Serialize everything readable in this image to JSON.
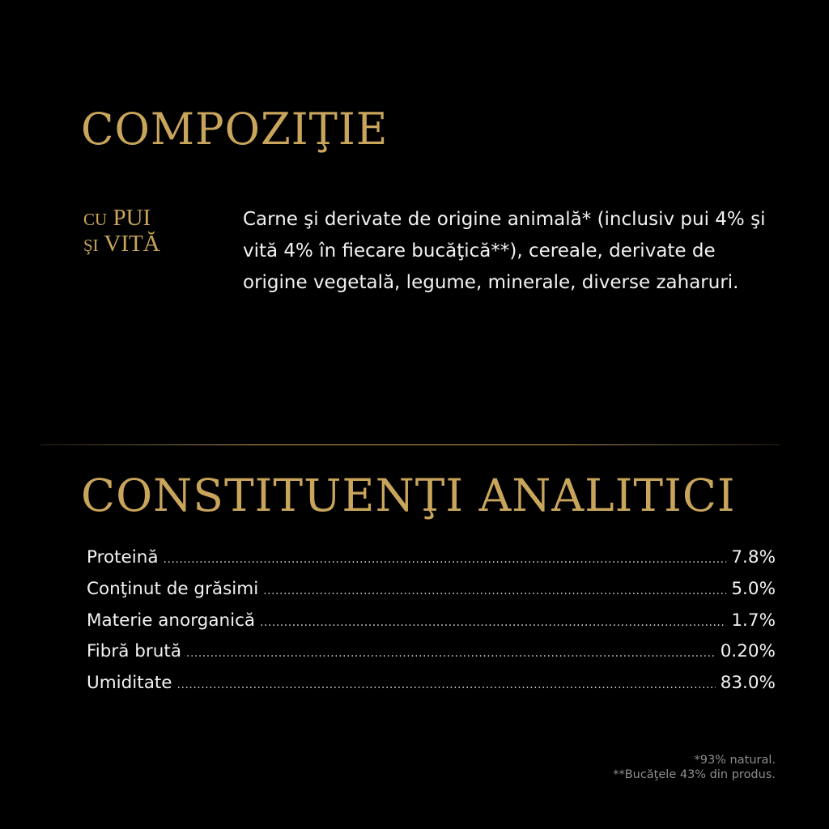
{
  "composition": {
    "title": "COMPOZIŢIE",
    "variant_line1_small": "CU",
    "variant_line1_big": "PUI",
    "variant_line2_small": "ŞI",
    "variant_line2_big": "VITĂ",
    "text": "Carne şi derivate de origine animală* (inclusiv pui 4% şi vită 4% în fiecare bucăţică**), cereale, derivate de origine vegetală, legume, minerale, diverse zaharuri."
  },
  "analytical": {
    "title": "CONSTITUENŢI ANALITICI",
    "rows": [
      {
        "label": "Proteină",
        "value": "7.8%"
      },
      {
        "label": "Conţinut de grăsimi",
        "value": "5.0%"
      },
      {
        "label": "Materie anorganică",
        "value": "1.7%"
      },
      {
        "label": "Fibră brută",
        "value": "0.20%"
      },
      {
        "label": "Umiditate",
        "value": "83.0%"
      }
    ]
  },
  "footnotes": [
    "*93% natural.",
    "**Bucăţele 43% din produs."
  ],
  "colors": {
    "background": "#000000",
    "accent_gold": "#c9a55c",
    "text": "#f2f2f2",
    "footnote": "#8e8e8e"
  }
}
